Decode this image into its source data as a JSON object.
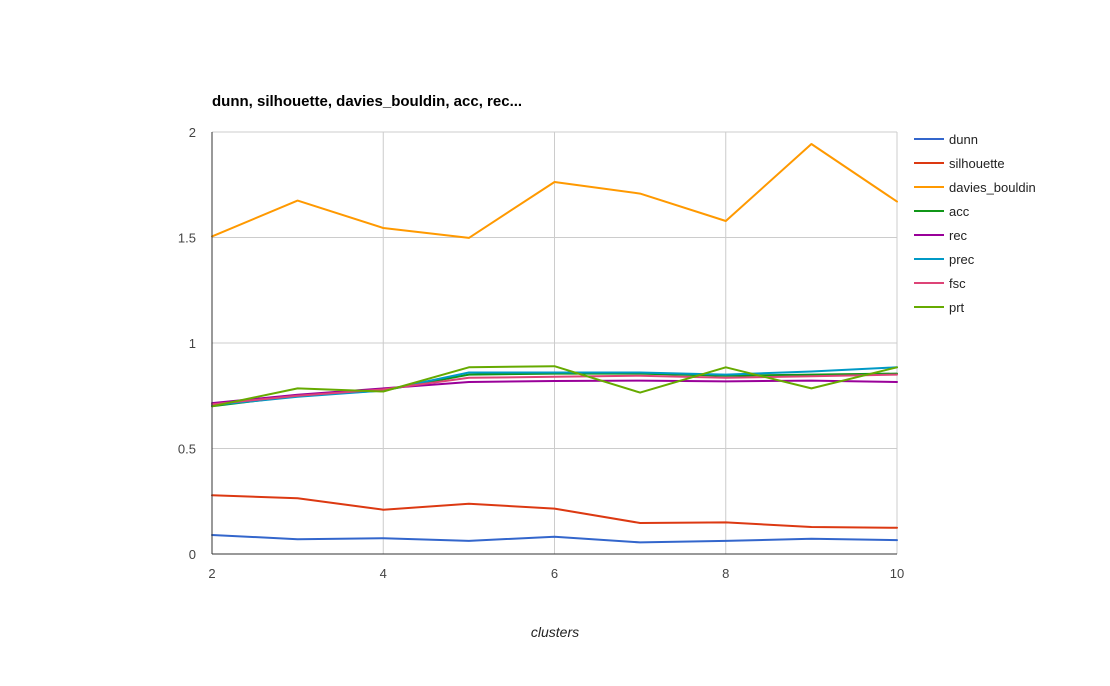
{
  "chart_data": {
    "type": "line",
    "title": "dunn, silhouette, davies_bouldin, acc, rec...",
    "xlabel": "clusters",
    "ylabel": "",
    "xlim": [
      2,
      10
    ],
    "ylim": [
      0,
      2
    ],
    "x_ticks": [
      2,
      4,
      6,
      8,
      10
    ],
    "y_ticks": [
      0,
      0.5,
      1,
      1.5,
      2
    ],
    "x_tick_labels": [
      "2",
      "4",
      "6",
      "8",
      "10"
    ],
    "y_tick_labels": [
      "0",
      "0.5",
      "1",
      "1.5",
      "2"
    ],
    "grid": true,
    "legend_position": "right",
    "x": [
      2,
      3,
      4,
      5,
      6,
      7,
      8,
      9,
      10
    ],
    "series": [
      {
        "name": "dunn",
        "color": "#3366cc",
        "values": [
          0.09,
          0.07,
          0.075,
          0.062,
          0.082,
          0.055,
          0.062,
          0.072,
          0.066
        ]
      },
      {
        "name": "silhouette",
        "color": "#dc3912",
        "values": [
          0.278,
          0.264,
          0.21,
          0.238,
          0.215,
          0.147,
          0.15,
          0.128,
          0.124
        ]
      },
      {
        "name": "davies_bouldin",
        "color": "#ff9900",
        "values": [
          1.505,
          1.675,
          1.545,
          1.498,
          1.763,
          1.708,
          1.578,
          1.943,
          1.67
        ]
      },
      {
        "name": "acc",
        "color": "#109618",
        "values": [
          0.7,
          0.75,
          0.775,
          0.85,
          0.855,
          0.855,
          0.845,
          0.85,
          0.855
        ]
      },
      {
        "name": "rec",
        "color": "#990099",
        "values": [
          0.715,
          0.755,
          0.785,
          0.815,
          0.82,
          0.822,
          0.818,
          0.822,
          0.815
        ]
      },
      {
        "name": "prec",
        "color": "#0099c6",
        "values": [
          0.705,
          0.745,
          0.775,
          0.86,
          0.86,
          0.86,
          0.85,
          0.865,
          0.885
        ]
      },
      {
        "name": "fsc",
        "color": "#dd4477",
        "values": [
          0.71,
          0.75,
          0.78,
          0.835,
          0.84,
          0.845,
          0.835,
          0.842,
          0.85
        ]
      },
      {
        "name": "prt",
        "color": "#66aa00",
        "values": [
          0.7,
          0.785,
          0.77,
          0.885,
          0.89,
          0.765,
          0.885,
          0.785,
          0.885
        ]
      }
    ]
  }
}
